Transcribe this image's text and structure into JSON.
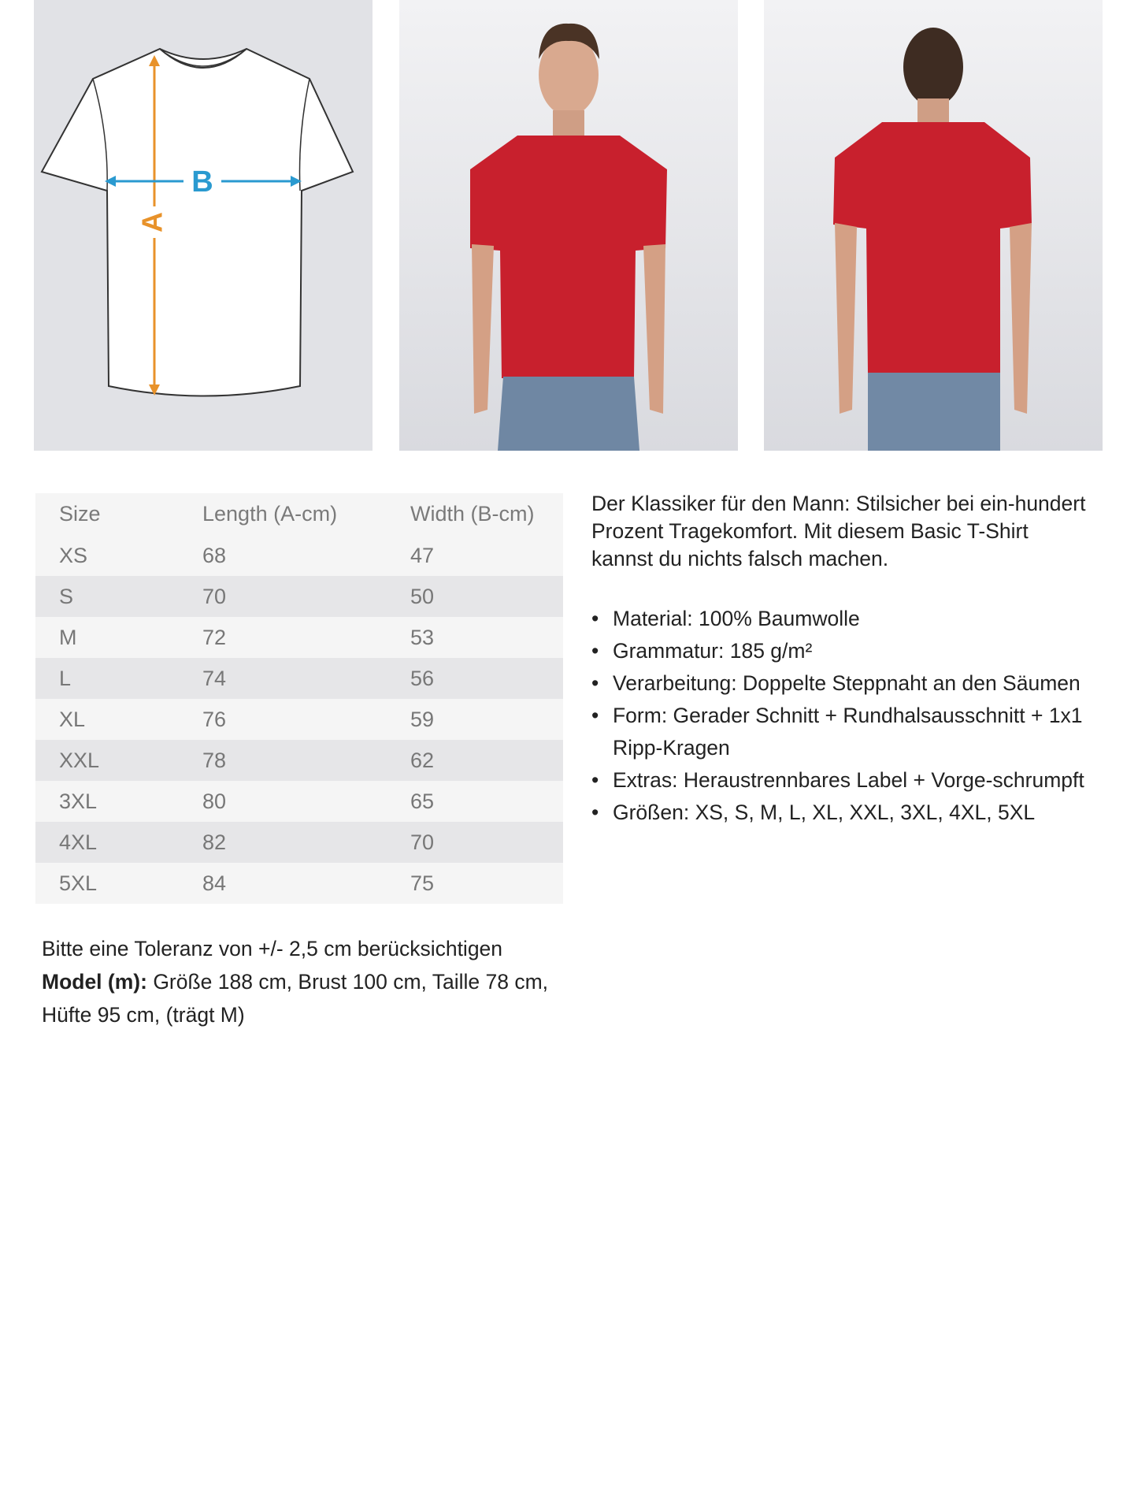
{
  "images": {
    "diagram": {
      "label_a": "A",
      "label_b": "B",
      "colors": {
        "a_arrow": "#e8922a",
        "b_arrow": "#2a9ad0"
      }
    },
    "front_photo": {
      "shirt_color": "#c8202d"
    },
    "back_photo": {
      "shirt_color": "#c8202d"
    }
  },
  "size_table": {
    "headers": [
      "Size",
      "Length (A-cm)",
      "Width (B-cm)"
    ],
    "rows": [
      [
        "XS",
        "68",
        "47"
      ],
      [
        "S",
        "70",
        "50"
      ],
      [
        "M",
        "72",
        "53"
      ],
      [
        "L",
        "74",
        "56"
      ],
      [
        "XL",
        "76",
        "59"
      ],
      [
        "XXL",
        "78",
        "62"
      ],
      [
        "3XL",
        "80",
        "65"
      ],
      [
        "4XL",
        "82",
        "70"
      ],
      [
        "5XL",
        "84",
        "75"
      ]
    ]
  },
  "description": {
    "intro": "Der Klassiker für den Mann: Stilsicher bei ein-hundert Prozent Tragekomfort. Mit diesem Basic T-Shirt kannst du nichts falsch machen.",
    "features": [
      "Material: 100% Baumwolle",
      "Grammatur: 185 g/m²",
      "Verarbeitung: Doppelte Steppnaht an den Säumen",
      "Form: Gerader Schnitt + Rundhalsausschnitt + 1x1 Ripp-Kragen",
      "Extras: Heraustrennbares Label + Vorge-schrumpft",
      "Größen: XS, S, M, L, XL, XXL, 3XL, 4XL, 5XL"
    ]
  },
  "notes": {
    "tolerance": "Bitte eine Toleranz von +/- 2,5 cm berücksichtigen",
    "model_label": "Model (m):",
    "model_text": " Größe 188 cm, Brust 100 cm, Taille 78 cm, Hüfte 95 cm, (trägt M)"
  }
}
